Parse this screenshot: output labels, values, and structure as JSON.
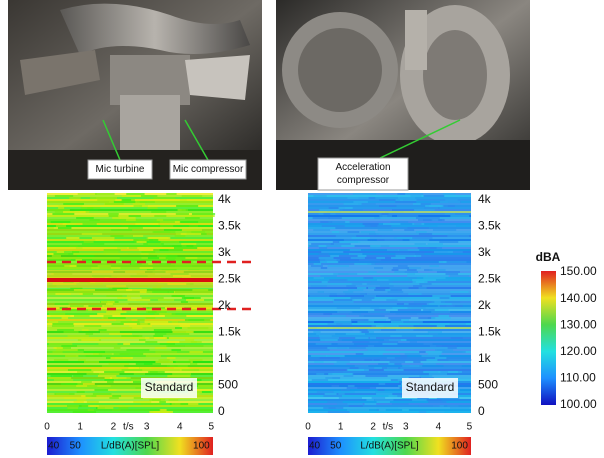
{
  "photos": [
    {
      "labels": [
        {
          "lines": [
            "Mic turbine"
          ]
        },
        {
          "lines": [
            "Mic compressor"
          ]
        }
      ]
    },
    {
      "labels": [
        {
          "lines": [
            "Acceleration",
            "compressor"
          ]
        }
      ]
    }
  ],
  "spectrograms": [
    {
      "y_labels": [
        "4k",
        "3.5k",
        "3k",
        "2.5k",
        "2k",
        "1.5k",
        "1k",
        "500",
        "0"
      ],
      "x_labels": [
        "0",
        "1",
        "2",
        "t/s",
        "3",
        "4",
        "5"
      ],
      "annotation": "Standard",
      "colorbar_labels": [
        "40",
        "50",
        "L/dB(A)[SPL]",
        "100"
      ]
    },
    {
      "y_labels": [
        "4k",
        "3.5k",
        "3k",
        "2.5k",
        "2k",
        "1.5k",
        "1k",
        "500",
        "0"
      ],
      "x_labels": [
        "0",
        "1",
        "2",
        "t/s",
        "3",
        "4",
        "5"
      ],
      "annotation": "Standard",
      "colorbar_labels": [
        "40",
        "50",
        "L/dB(A)[SPL]",
        "100"
      ]
    }
  ],
  "legend": {
    "title": "dBA",
    "labels": [
      "150.00",
      "140.00",
      "130.00",
      "120.00",
      "110.00",
      "100.00"
    ]
  }
}
